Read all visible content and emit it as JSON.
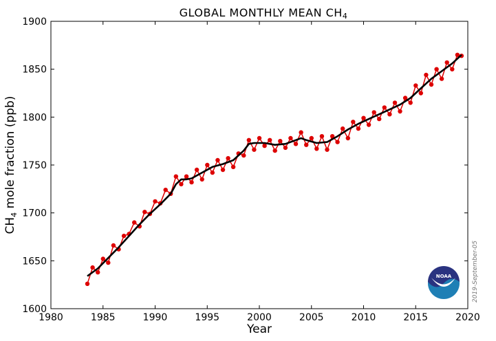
{
  "chart_data": {
    "type": "line",
    "title_main": "GLOBAL MONTHLY MEAN CH",
    "title_sub": "4",
    "xlabel": "Year",
    "ylabel_main": "CH",
    "ylabel_sub": "4",
    "ylabel_rest": " mole fraction (ppb)",
    "xlim": [
      1980,
      2020
    ],
    "ylim": [
      1600,
      1900
    ],
    "xticks": [
      1980,
      1985,
      1990,
      1995,
      2000,
      2005,
      2010,
      2015,
      2020
    ],
    "yticks": [
      1600,
      1650,
      1700,
      1750,
      1800,
      1850,
      1900
    ],
    "grid": false,
    "series": [
      {
        "kind": "monthly",
        "color": "#dd0000",
        "markers": true,
        "x": [
          1983.5,
          1984.0,
          1984.5,
          1985.0,
          1985.5,
          1986.0,
          1986.5,
          1987.0,
          1987.5,
          1988.0,
          1988.5,
          1989.0,
          1989.5,
          1990.0,
          1990.5,
          1991.0,
          1991.5,
          1992.0,
          1992.5,
          1993.0,
          1993.5,
          1994.0,
          1994.5,
          1995.0,
          1995.5,
          1996.0,
          1996.5,
          1997.0,
          1997.5,
          1998.0,
          1998.5,
          1999.0,
          1999.5,
          2000.0,
          2000.5,
          2001.0,
          2001.5,
          2002.0,
          2002.5,
          2003.0,
          2003.5,
          2004.0,
          2004.5,
          2005.0,
          2005.5,
          2006.0,
          2006.5,
          2007.0,
          2007.5,
          2008.0,
          2008.5,
          2009.0,
          2009.5,
          2010.0,
          2010.5,
          2011.0,
          2011.5,
          2012.0,
          2012.5,
          2013.0,
          2013.5,
          2014.0,
          2014.5,
          2015.0,
          2015.5,
          2016.0,
          2016.5,
          2017.0,
          2017.5,
          2018.0,
          2018.5,
          2019.0,
          2019.4
        ],
        "y": [
          1626,
          1643,
          1638,
          1652,
          1648,
          1666,
          1662,
          1676,
          1678,
          1690,
          1686,
          1701,
          1699,
          1712,
          1710,
          1724,
          1720,
          1738,
          1730,
          1738,
          1732,
          1745,
          1735,
          1750,
          1742,
          1755,
          1745,
          1757,
          1748,
          1762,
          1760,
          1776,
          1766,
          1778,
          1770,
          1776,
          1765,
          1775,
          1768,
          1778,
          1772,
          1784,
          1771,
          1778,
          1767,
          1780,
          1766,
          1780,
          1774,
          1788,
          1778,
          1795,
          1788,
          1799,
          1792,
          1805,
          1798,
          1810,
          1803,
          1815,
          1806,
          1820,
          1815,
          1833,
          1825,
          1844,
          1834,
          1850,
          1840,
          1857,
          1850,
          1865,
          1864
        ]
      },
      {
        "kind": "trend",
        "color": "#000000",
        "markers": false,
        "x": [
          1983.5,
          1984.5,
          1985.5,
          1986.5,
          1987.5,
          1988.5,
          1989.5,
          1990.5,
          1991.5,
          1992.0,
          1992.5,
          1993.0,
          1993.5,
          1994.5,
          1995.5,
          1996.5,
          1997.5,
          1998.5,
          1999.0,
          1999.5,
          2000.5,
          2001.5,
          2002.5,
          2003.5,
          2004.0,
          2004.5,
          2005.5,
          2006.5,
          2007.5,
          2008.5,
          2009.5,
          2010.5,
          2011.5,
          2012.5,
          2013.5,
          2014.5,
          2015.5,
          2016.5,
          2017.5,
          2018.5,
          2019.4
        ],
        "y": [
          1634,
          1642,
          1653,
          1664,
          1676,
          1688,
          1699,
          1709,
          1720,
          1730,
          1735,
          1735,
          1736,
          1742,
          1748,
          1751,
          1755,
          1765,
          1772,
          1773,
          1773,
          1771,
          1772,
          1776,
          1778,
          1776,
          1773,
          1774,
          1780,
          1787,
          1793,
          1798,
          1803,
          1808,
          1813,
          1820,
          1830,
          1840,
          1848,
          1856,
          1865
        ]
      }
    ]
  },
  "stamp": {
    "date": "2019-September-05"
  },
  "logo": {
    "text": "NOAA",
    "colors": {
      "top": "#2a3380",
      "bottom": "#1f7fb5",
      "wave": "#ffffff"
    }
  }
}
